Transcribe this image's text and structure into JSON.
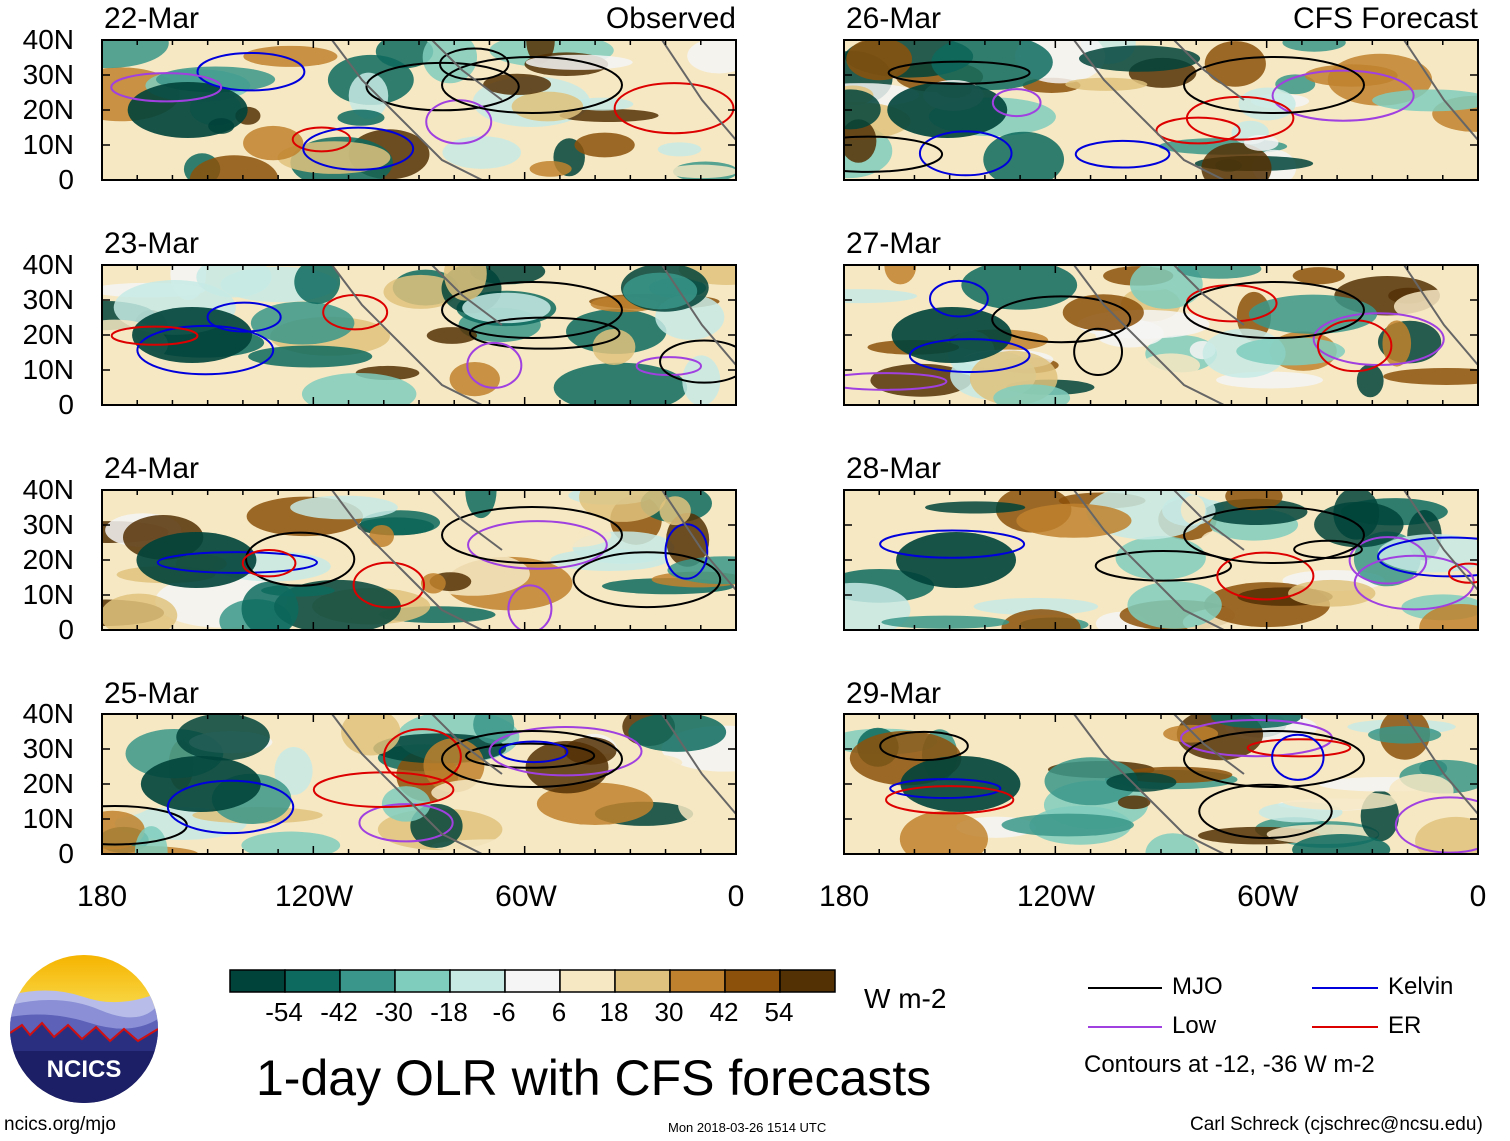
{
  "title": "1-day OLR with CFS forecasts",
  "panels": {
    "observed_label": "Observed",
    "forecast_label": "CFS Forecast",
    "observed_dates": [
      "22-Mar",
      "23-Mar",
      "24-Mar",
      "25-Mar"
    ],
    "forecast_dates": [
      "26-Mar",
      "27-Mar",
      "28-Mar",
      "29-Mar"
    ]
  },
  "axes": {
    "lat_labels": [
      "40N",
      "30N",
      "20N",
      "10N",
      "0"
    ],
    "lon_labels": [
      "180",
      "120W",
      "60W",
      "0"
    ]
  },
  "colorbar": {
    "ticks": [
      "-54",
      "-42",
      "-30",
      "-18",
      "-6",
      "6",
      "18",
      "30",
      "42",
      "54"
    ],
    "units": "W m-2",
    "colors": [
      "#00433a",
      "#0d6a5e",
      "#3a968a",
      "#7fcdbd",
      "#c7eae5",
      "#f5f5f5",
      "#f6e8c3",
      "#dfc27d",
      "#bf812d",
      "#8c510a",
      "#543005"
    ]
  },
  "legend": {
    "items": [
      {
        "label": "MJO",
        "color": "#000000"
      },
      {
        "label": "Kelvin",
        "color": "#0000dd"
      },
      {
        "label": "Low",
        "color": "#a040e0"
      },
      {
        "label": "ER",
        "color": "#dd0000"
      }
    ],
    "note": "Contours at -12, -36 W m-2"
  },
  "logo": {
    "text": "NCICS"
  },
  "footer": {
    "url": "ncics.org/mjo",
    "timestamp": "Mon 2018-03-26 1514 UTC",
    "credit": "Carl Schreck (cjschrec@ncsu.edu)"
  }
}
